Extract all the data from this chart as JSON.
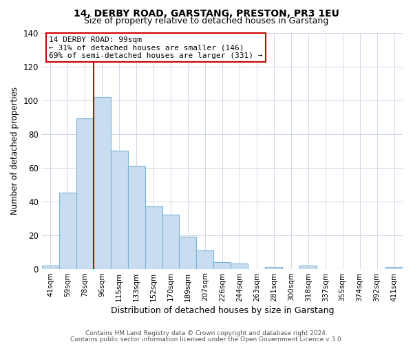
{
  "title": "14, DERBY ROAD, GARSTANG, PRESTON, PR3 1EU",
  "subtitle": "Size of property relative to detached houses in Garstang",
  "xlabel": "Distribution of detached houses by size in Garstang",
  "ylabel": "Number of detached properties",
  "bin_labels": [
    "41sqm",
    "59sqm",
    "78sqm",
    "96sqm",
    "115sqm",
    "133sqm",
    "152sqm",
    "170sqm",
    "189sqm",
    "207sqm",
    "226sqm",
    "244sqm",
    "263sqm",
    "281sqm",
    "300sqm",
    "318sqm",
    "337sqm",
    "355sqm",
    "374sqm",
    "392sqm",
    "411sqm"
  ],
  "bar_heights": [
    2,
    45,
    89,
    102,
    70,
    61,
    37,
    32,
    19,
    11,
    4,
    3,
    0,
    1,
    0,
    2,
    0,
    0,
    0,
    0,
    1
  ],
  "bar_color": "#c8ddf0",
  "bar_edge_color": "#7ab4d8",
  "vline_x_idx": 3,
  "vline_color": "#cc0000",
  "annotation_title": "14 DERBY ROAD: 99sqm",
  "annotation_line1": "← 31% of detached houses are smaller (146)",
  "annotation_line2": "69% of semi-detached houses are larger (331) →",
  "annotation_box_color": "#cc0000",
  "ylim": [
    0,
    140
  ],
  "yticks": [
    0,
    20,
    40,
    60,
    80,
    100,
    120,
    140
  ],
  "footer1": "Contains HM Land Registry data © Crown copyright and database right 2024.",
  "footer2": "Contains public sector information licensed under the Open Government Licence v 3.0.",
  "background_color": "#ffffff",
  "grid_color": "#d0d8e8"
}
